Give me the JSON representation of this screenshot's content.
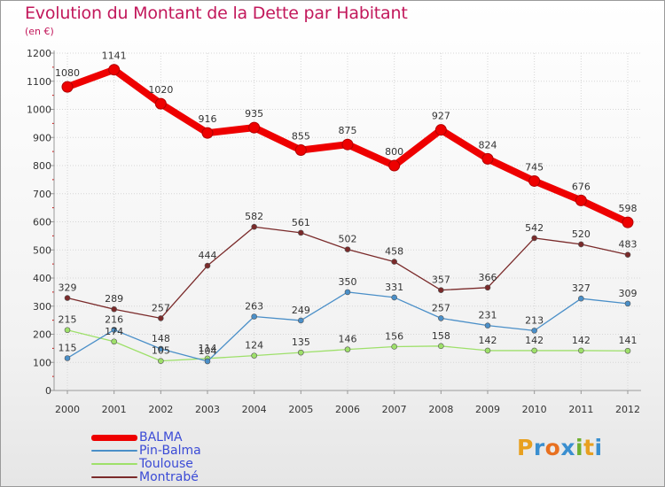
{
  "header": {
    "title": "Evolution du Montant de la Dette par Habitant",
    "subtitle": "(en €)"
  },
  "chart_data": {
    "type": "line",
    "x": [
      "2000",
      "2001",
      "2002",
      "2003",
      "2004",
      "2005",
      "2006",
      "2007",
      "2008",
      "2009",
      "2010",
      "2011",
      "2012"
    ],
    "y_ticks": [
      "0",
      "100",
      "200",
      "300",
      "400",
      "500",
      "600",
      "700",
      "800",
      "900",
      "1000",
      "1100",
      "1200"
    ],
    "ylim": [
      0,
      1200
    ],
    "grid": true,
    "legend_position": "bottom-left",
    "series": [
      {
        "name": "BALMA",
        "color": "#ee0000",
        "values": [
          1080,
          1141,
          1020,
          916,
          935,
          855,
          875,
          800,
          927,
          824,
          745,
          676,
          598
        ],
        "labels": [
          "1080",
          "1141",
          "1020",
          "916",
          "935",
          "855",
          "875",
          "800",
          "927",
          "824",
          "745",
          "676",
          "598"
        ]
      },
      {
        "name": "Pin-Balma",
        "color": "#4a8fc8",
        "values": [
          115,
          216,
          148,
          104,
          263,
          249,
          350,
          331,
          257,
          231,
          213,
          327,
          309
        ],
        "labels": [
          "115",
          "216",
          "148",
          "104",
          "263",
          "249",
          "350",
          "331",
          "257",
          "231",
          "213",
          "327",
          "309"
        ]
      },
      {
        "name": "Toulouse",
        "color": "#9ee06a",
        "values": [
          215,
          174,
          105,
          114,
          124,
          135,
          146,
          156,
          158,
          142,
          142,
          142,
          141
        ],
        "labels": [
          "215",
          "174",
          "105",
          "114",
          "124",
          "135",
          "146",
          "156",
          "158",
          "142",
          "142",
          "142",
          "141"
        ]
      },
      {
        "name": "Montrabé",
        "color": "#7a2a2a",
        "values": [
          329,
          289,
          257,
          444,
          582,
          561,
          502,
          458,
          357,
          366,
          542,
          520,
          483
        ],
        "labels": [
          "329",
          "289",
          "257",
          "444",
          "582",
          "561",
          "502",
          "458",
          "357",
          "366",
          "542",
          "520",
          "483"
        ]
      }
    ]
  },
  "logo": {
    "letters": [
      "P",
      "r",
      "o",
      "x",
      "i",
      "t",
      "i"
    ],
    "colors": [
      "#e8a020",
      "#3a8fd0",
      "#e87020",
      "#3a8fd0",
      "#70b030",
      "#e8a020",
      "#3a8fd0"
    ]
  }
}
